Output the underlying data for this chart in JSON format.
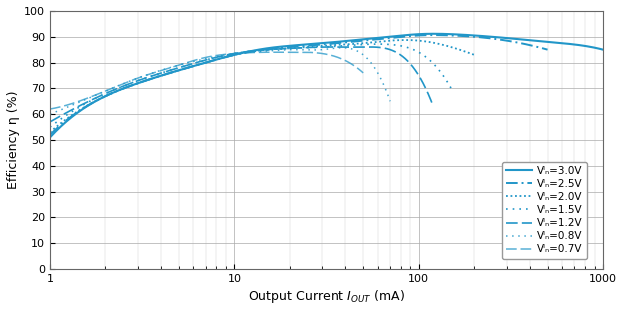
{
  "title": "",
  "xlabel": "Output Current Iₒᵁᵀ (mA)",
  "ylabel": "Efficiency η (%)",
  "xlim": [
    1,
    1000
  ],
  "ylim": [
    0,
    100
  ],
  "yticks": [
    0,
    10,
    20,
    30,
    40,
    50,
    60,
    70,
    80,
    90,
    100
  ],
  "line_color": "#2196c8",
  "background_color": "#ffffff",
  "series": [
    {
      "label": "Vᴵₙ=3.0V",
      "linestyle": "solid",
      "x": [
        1,
        2,
        3,
        5,
        7,
        10,
        15,
        20,
        30,
        50,
        70,
        100,
        150,
        200,
        300,
        500,
        700,
        1000
      ],
      "y": [
        51,
        67,
        72,
        77,
        80,
        83,
        85.5,
        86.5,
        87.5,
        89,
        90,
        91,
        91,
        90.5,
        89.5,
        88,
        87,
        85
      ]
    },
    {
      "label": "Vᴵₙ=2.5V",
      "linestyle": "dashdot",
      "x": [
        1,
        2,
        3,
        5,
        7,
        10,
        15,
        20,
        30,
        50,
        70,
        100,
        150,
        200,
        300,
        500
      ],
      "y": [
        52,
        67,
        72,
        77,
        80,
        83,
        85,
        86,
        87,
        88.5,
        89.5,
        90.5,
        90.5,
        90,
        88.5,
        85
      ]
    },
    {
      "label": "Vᴵₙ=2.0V",
      "linestyle": "dotted",
      "x": [
        1,
        2,
        3,
        5,
        7,
        10,
        15,
        20,
        30,
        50,
        70,
        100,
        150,
        200
      ],
      "y": [
        53,
        67,
        72,
        77,
        80,
        83,
        85,
        85.5,
        86.5,
        87.5,
        88.5,
        88.5,
        86,
        83
      ]
    },
    {
      "label": "Vᴵₙ=1.5V",
      "linestyle": [
        0,
        [
          1,
          2.5
        ]
      ],
      "x": [
        1,
        2,
        3,
        5,
        7,
        10,
        15,
        20,
        30,
        50,
        70,
        100,
        150
      ],
      "y": [
        55,
        68,
        73,
        78,
        81,
        83.5,
        85,
        85.5,
        86,
        87,
        87,
        84,
        70
      ]
    },
    {
      "label": "Vᴵₙ=1.2V",
      "linestyle": [
        0,
        [
          6,
          2
        ]
      ],
      "x": [
        1,
        2,
        3,
        5,
        7,
        10,
        15,
        20,
        30,
        50,
        70,
        100,
        120
      ],
      "y": [
        57,
        68,
        73,
        78,
        81,
        83.5,
        85,
        85.5,
        86,
        86,
        85,
        75,
        63
      ]
    },
    {
      "label": "Vᴵₙ=0.8V",
      "linestyle": [
        0,
        [
          1,
          2.5
        ]
      ],
      "x": [
        1,
        2,
        3,
        5,
        7,
        10,
        15,
        20,
        30,
        50,
        70
      ],
      "y": [
        60,
        69,
        74,
        79,
        81.5,
        83.5,
        84.5,
        85,
        85,
        83,
        65
      ]
    },
    {
      "label": "Vᴵₙ=0.7V",
      "linestyle": [
        0,
        [
          6,
          2
        ]
      ],
      "x": [
        1,
        2,
        3,
        5,
        7,
        10,
        15,
        20,
        30,
        50
      ],
      "y": [
        62,
        69,
        74,
        79,
        82,
        83.5,
        84,
        84,
        83.5,
        76
      ]
    }
  ]
}
